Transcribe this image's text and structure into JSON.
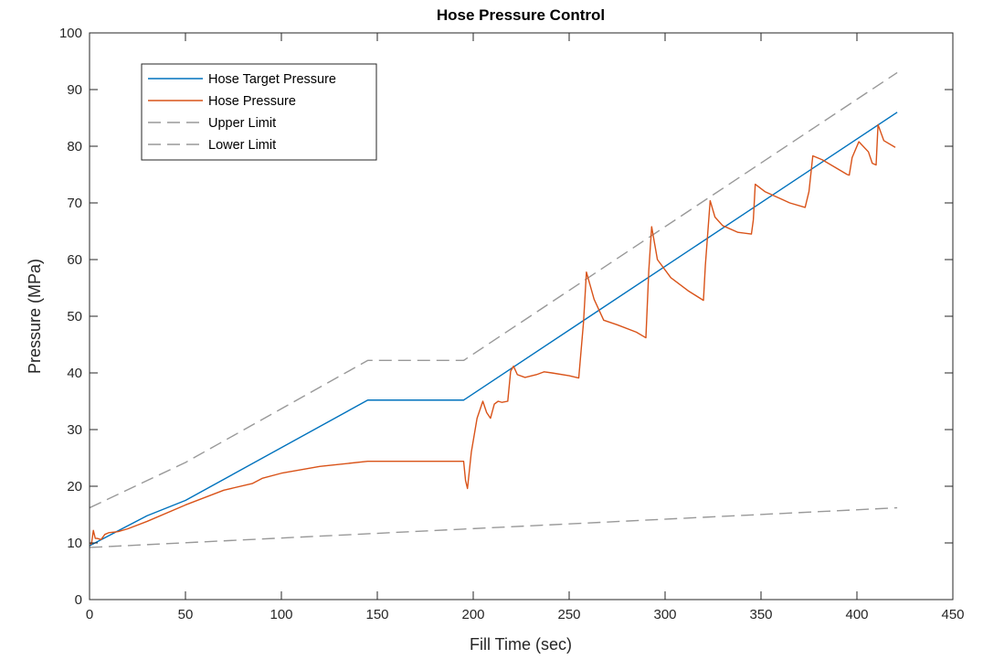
{
  "chart_data": {
    "type": "line",
    "title": "Hose Pressure Control",
    "xlabel": "Fill Time (sec)",
    "ylabel": "Pressure (MPa)",
    "xlim": [
      0,
      450
    ],
    "ylim": [
      0,
      100
    ],
    "xticks": [
      0,
      50,
      100,
      150,
      200,
      250,
      300,
      350,
      400,
      450
    ],
    "yticks": [
      0,
      10,
      20,
      30,
      40,
      50,
      60,
      70,
      80,
      90,
      100
    ],
    "grid": false,
    "legend_position": "top-left",
    "series": [
      {
        "name": "Hose Target Pressure",
        "color": "#0072BD",
        "style": "solid",
        "x": [
          0,
          30,
          50,
          145,
          195,
          421
        ],
        "y": [
          9.5,
          14.8,
          17.5,
          35.2,
          35.2,
          86
        ]
      },
      {
        "name": "Hose Pressure",
        "color": "#D95319",
        "style": "solid",
        "x": [
          0,
          1,
          2,
          3,
          4,
          6,
          8,
          10,
          15,
          20,
          30,
          50,
          70,
          85,
          90,
          100,
          120,
          145,
          195,
          196,
          197,
          199,
          202,
          205,
          207,
          209,
          211,
          213,
          215,
          218,
          219.5,
          221,
          223,
          227,
          233,
          237,
          241,
          250,
          255,
          257.5,
          259,
          263,
          268,
          275,
          285,
          290,
          291.5,
          293,
          296,
          303,
          312,
          320,
          321,
          323.5,
          326,
          330,
          338,
          345,
          346,
          347,
          352,
          365,
          373,
          375,
          377,
          382,
          395,
          396,
          397.5,
          401,
          406,
          408,
          410,
          411,
          414,
          420
        ],
        "y": [
          10,
          9.8,
          12.2,
          10.8,
          10.8,
          10.6,
          11.5,
          11.8,
          12,
          12.5,
          13.8,
          16.7,
          19.3,
          20.5,
          21.4,
          22.3,
          23.5,
          24.4,
          24.4,
          21,
          19.6,
          26,
          32,
          35,
          33,
          32,
          34.5,
          35,
          34.8,
          35,
          40.3,
          41.2,
          39.7,
          39.2,
          39.7,
          40.2,
          40,
          39.5,
          39.1,
          49,
          57.8,
          53,
          49.3,
          48.5,
          47.2,
          46.2,
          58,
          65.8,
          60,
          56.8,
          54.5,
          52.8,
          59,
          70.4,
          67.5,
          66,
          64.8,
          64.5,
          67,
          73.3,
          72,
          70,
          69.2,
          72,
          78.3,
          77.6,
          75,
          74.9,
          78,
          80.8,
          79,
          77,
          76.7,
          83.8,
          81,
          79.8
        ]
      },
      {
        "name": "Upper Limit",
        "color": "#999999",
        "style": "dashed",
        "x": [
          0,
          50,
          145,
          195,
          421
        ],
        "y": [
          16.2,
          24.2,
          42.2,
          42.2,
          93
        ]
      },
      {
        "name": "Lower Limit",
        "color": "#999999",
        "style": "dashed",
        "x": [
          0,
          421
        ],
        "y": [
          9.2,
          16.2
        ]
      }
    ]
  }
}
